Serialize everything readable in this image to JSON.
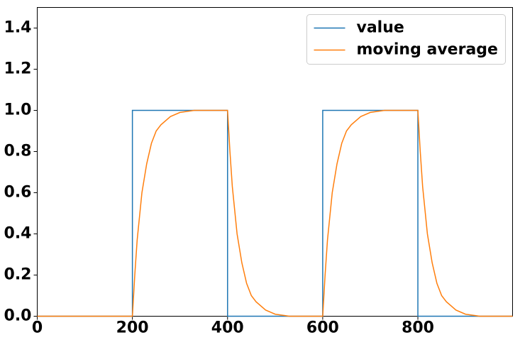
{
  "chart_data": {
    "type": "line",
    "series": [
      {
        "name": "value",
        "color": "#1f77b4",
        "x": [
          0,
          200,
          200,
          400,
          400,
          600,
          600,
          800,
          800,
          999
        ],
        "values": [
          0,
          0,
          1,
          1,
          0,
          0,
          1,
          1,
          0,
          0
        ]
      },
      {
        "name": "moving average",
        "color": "#ff7f0e",
        "x": [
          0,
          200,
          205,
          210,
          220,
          230,
          240,
          250,
          260,
          280,
          300,
          330,
          400,
          405,
          410,
          420,
          430,
          440,
          450,
          460,
          480,
          500,
          530,
          600,
          605,
          610,
          620,
          630,
          640,
          650,
          660,
          680,
          700,
          730,
          800,
          805,
          810,
          820,
          830,
          840,
          850,
          860,
          880,
          900,
          930,
          999
        ],
        "values": [
          0,
          0,
          0.2,
          0.37,
          0.6,
          0.74,
          0.84,
          0.9,
          0.93,
          0.97,
          0.99,
          1.0,
          1.0,
          0.8,
          0.63,
          0.4,
          0.26,
          0.16,
          0.1,
          0.07,
          0.03,
          0.01,
          0.0,
          0.0,
          0.2,
          0.37,
          0.6,
          0.74,
          0.84,
          0.9,
          0.93,
          0.97,
          0.99,
          1.0,
          1.0,
          0.8,
          0.63,
          0.4,
          0.26,
          0.16,
          0.1,
          0.07,
          0.03,
          0.01,
          0.0,
          0.0
        ]
      }
    ],
    "xlim": [
      0,
      999
    ],
    "xticks": [
      0,
      200,
      400,
      600,
      800
    ],
    "ylim": [
      0,
      1.5
    ],
    "yticks": [
      {
        "value": 0,
        "label": "0.0"
      },
      {
        "value": 0.2,
        "label": "0.2"
      },
      {
        "value": 0.4,
        "label": "0.4"
      },
      {
        "value": 0.6,
        "label": "0.6"
      },
      {
        "value": 0.8,
        "label": "0.8"
      },
      {
        "value": 1.0,
        "label": "1.0"
      },
      {
        "value": 1.2,
        "label": "1.2"
      },
      {
        "value": 1.4,
        "label": "1.4"
      }
    ],
    "legend": "upper right"
  }
}
